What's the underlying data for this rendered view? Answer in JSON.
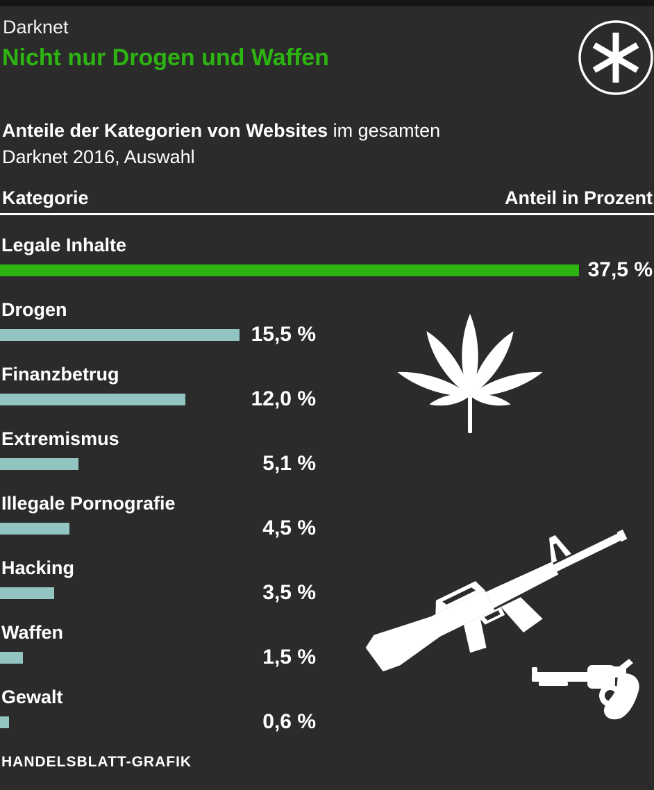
{
  "page": {
    "kicker": "Darknet",
    "title": "Nicht nur Drogen und Waffen",
    "subtitle_line1_bold": "Anteile der Kategorien von Websites",
    "subtitle_line1_rest": " im gesamten",
    "subtitle_line2": "Darknet 2016, Auswahl",
    "col_left": "Kategorie",
    "col_right": "Anteil in Prozent",
    "credit": "HANDELSBLATT-GRAFIK"
  },
  "colors": {
    "background": "#2b2b2b",
    "accent_green": "#2db412",
    "bar_teal": "#92c5c2",
    "text": "#ffffff"
  },
  "icons": {
    "badge": "asterisk-icon",
    "drugs": "cannabis-leaf-icon",
    "weapons_rifle": "rifle-icon",
    "weapons_revolver": "revolver-icon"
  },
  "chart_data": {
    "type": "bar",
    "orientation": "horizontal",
    "title": "Nicht nur Drogen und Waffen",
    "subtitle": "Anteile der Kategorien von Websites im gesamten Darknet 2016, Auswahl",
    "categories": [
      "Legale Inhalte",
      "Drogen",
      "Finanzbetrug",
      "Extremismus",
      "Illegale Pornografie",
      "Hacking",
      "Waffen",
      "Gewalt"
    ],
    "values": [
      37.5,
      15.5,
      12.0,
      5.1,
      4.5,
      3.5,
      1.5,
      0.6
    ],
    "value_labels": [
      "37,5 %",
      "15,5 %",
      "12,0 %",
      "5,1 %",
      "4,5 %",
      "3,5 %",
      "1,5 %",
      "0,6 %"
    ],
    "bar_colors": [
      "#2db412",
      "#92c5c2",
      "#92c5c2",
      "#92c5c2",
      "#92c5c2",
      "#92c5c2",
      "#92c5c2",
      "#92c5c2"
    ],
    "unit": "percent",
    "xlim": [
      0,
      37.5
    ],
    "grid": false,
    "legend": false
  }
}
